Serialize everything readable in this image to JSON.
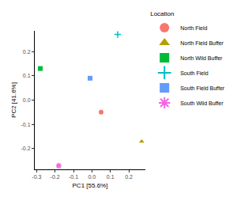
{
  "chart_data": {
    "type": "scatter",
    "x_label": "PC1 [55.6%]",
    "y_label": "PC2 [41.6%]",
    "legend_title": "Location",
    "legend": "right",
    "grid": false,
    "xlim": [
      -0.31,
      0.29
    ],
    "ylim": [
      -0.285,
      0.285
    ],
    "xticks": [
      -0.3,
      -0.2,
      -0.1,
      {
        "value": 0,
        "label": "0.0"
      },
      0.1,
      0.2
    ],
    "yticks": [
      -0.2,
      -0.1,
      {
        "value": 0,
        "label": "0.0"
      },
      0.1,
      0.2
    ],
    "series": [
      {
        "name": "North Field",
        "color": "#F8766D",
        "marker": "circle",
        "x": [
          0.05
        ],
        "values": [
          -0.05
        ]
      },
      {
        "name": "North Field Buffer",
        "color": "#B79F00",
        "marker": "triangle-up",
        "x": [
          0.27
        ],
        "values": [
          -0.17
        ]
      },
      {
        "name": "North Wild Buffer",
        "color": "#00BA38",
        "marker": "square",
        "x": [
          -0.28
        ],
        "values": [
          0.13
        ]
      },
      {
        "name": "South Field",
        "color": "#00BFC4",
        "marker": "cross-thin",
        "x": [
          0.14
        ],
        "values": [
          0.27
        ]
      },
      {
        "name": "South Field Buffer",
        "color": "#619CFF",
        "marker": "square",
        "x": [
          -0.01
        ],
        "values": [
          0.09
        ]
      },
      {
        "name": "South Wild Buffer",
        "color": "#F564E3",
        "marker": "asterisk",
        "x": [
          -0.18
        ],
        "values": [
          -0.27
        ]
      }
    ]
  }
}
